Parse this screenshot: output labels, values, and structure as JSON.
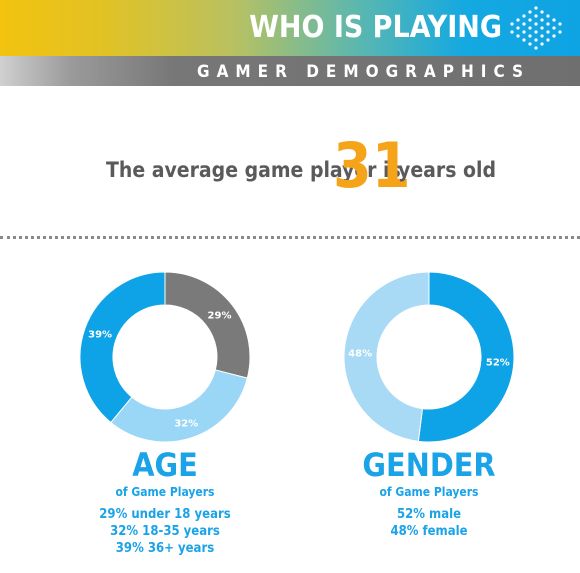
{
  "header": {
    "title": "WHO IS PLAYING",
    "logo_icon": "dotted-arrow-icon"
  },
  "subheader": {
    "title": "GAMER DEMOGRAPHICS"
  },
  "headline": {
    "prefix": "The average game player is",
    "number": "31",
    "suffix": "years old"
  },
  "colors": {
    "dark_blue": "#0ea3e6",
    "light_blue": "#a8d9f5",
    "light_blue_2": "#9ad6f6",
    "gray": "#7a7a7a",
    "orange": "#f5a41a",
    "title_blue": "#1aa3e6"
  },
  "chart_data": [
    {
      "type": "pie",
      "title": "AGE",
      "subtitle": "of Game Players",
      "slices": [
        {
          "label": "under 18 years",
          "value": 29,
          "display": "29%",
          "color": "#7a7a7a"
        },
        {
          "label": "18-35 years",
          "value": 32,
          "display": "32%",
          "color": "#9ad6f6"
        },
        {
          "label": "36+ years",
          "value": 39,
          "display": "39%",
          "color": "#0ea3e6"
        }
      ],
      "details": [
        "29% under 18 years",
        "32% 18-35 years",
        "39% 36+ years"
      ]
    },
    {
      "type": "pie",
      "title": "GENDER",
      "subtitle": "of Game Players",
      "slices": [
        {
          "label": "male",
          "value": 52,
          "display": "52%",
          "color": "#0ea3e6"
        },
        {
          "label": "female",
          "value": 48,
          "display": "48%",
          "color": "#a8d9f5"
        }
      ],
      "details": [
        "52% male",
        "48% female"
      ]
    }
  ]
}
